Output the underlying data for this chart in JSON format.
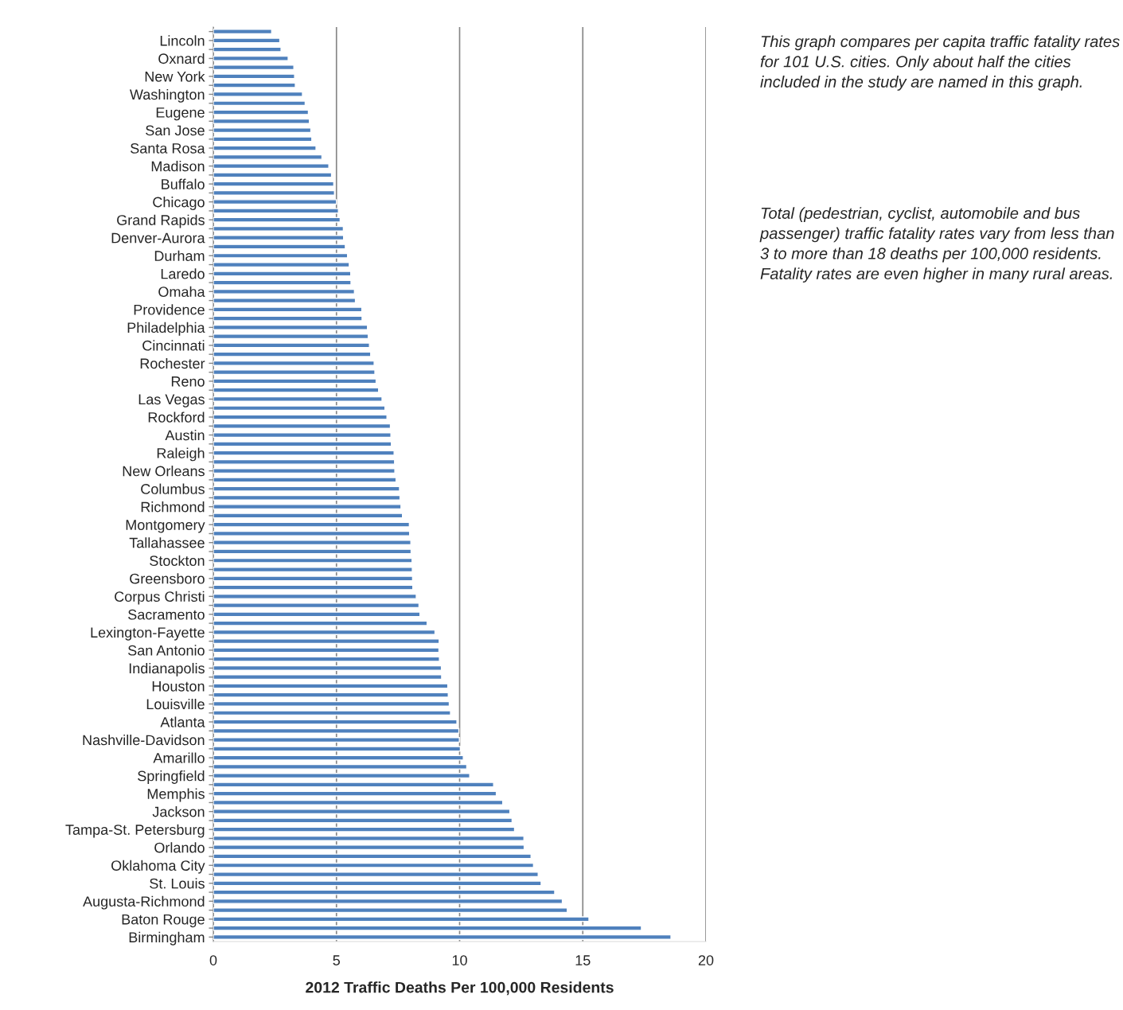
{
  "chart_data": {
    "type": "bar",
    "orientation": "horizontal",
    "xlabel": "2012 Traffic Deaths Per 100,000 Residents",
    "categories": [
      null,
      "Lincoln",
      null,
      "Oxnard",
      null,
      "New York",
      null,
      "Washington",
      null,
      "Eugene",
      null,
      "San Jose",
      null,
      "Santa Rosa",
      null,
      "Madison",
      null,
      "Buffalo",
      null,
      "Chicago",
      null,
      "Grand Rapids",
      null,
      "Denver-Aurora",
      null,
      "Durham",
      null,
      "Laredo",
      null,
      "Omaha",
      null,
      "Providence",
      null,
      "Philadelphia",
      null,
      "Cincinnati",
      null,
      "Rochester",
      null,
      "Reno",
      null,
      "Las Vegas",
      null,
      "Rockford",
      null,
      "Austin",
      null,
      "Raleigh",
      null,
      "New Orleans",
      null,
      "Columbus",
      null,
      "Richmond",
      null,
      "Montgomery",
      null,
      "Tallahassee",
      null,
      "Stockton",
      null,
      "Greensboro",
      null,
      "Corpus Christi",
      null,
      "Sacramento",
      null,
      "Lexington-Fayette",
      null,
      "San Antonio",
      null,
      "Indianapolis",
      null,
      "Houston",
      null,
      "Louisville",
      null,
      "Atlanta",
      null,
      "Nashville-Davidson",
      null,
      "Amarillo",
      null,
      "Springfield",
      null,
      "Memphis",
      null,
      "Jackson",
      null,
      "Tampa-St. Petersburg",
      null,
      "Orlando",
      null,
      "Oklahoma City",
      null,
      "St. Louis",
      null,
      "Augusta-Richmond",
      null,
      "Baton Rouge",
      null,
      "Birmingham"
    ],
    "values": [
      2.37,
      2.7,
      2.75,
      3.04,
      3.27,
      3.3,
      3.33,
      3.62,
      3.73,
      3.86,
      3.9,
      3.96,
      4.0,
      4.17,
      4.41,
      4.69,
      4.8,
      4.89,
      4.92,
      5.0,
      5.08,
      5.15,
      5.28,
      5.29,
      5.36,
      5.45,
      5.52,
      5.58,
      5.59,
      5.73,
      5.77,
      6.03,
      6.04,
      6.26,
      6.29,
      6.34,
      6.39,
      6.53,
      6.56,
      6.61,
      6.71,
      6.85,
      6.97,
      7.05,
      7.19,
      7.21,
      7.23,
      7.34,
      7.36,
      7.37,
      7.42,
      7.56,
      7.58,
      7.62,
      7.68,
      7.96,
      7.97,
      8.02,
      8.03,
      8.07,
      8.08,
      8.09,
      8.1,
      8.24,
      8.35,
      8.39,
      8.68,
      9.0,
      9.17,
      9.16,
      9.18,
      9.26,
      9.27,
      9.52,
      9.54,
      9.58,
      9.63,
      9.89,
      9.97,
      9.99,
      10.03,
      10.15,
      10.29,
      10.41,
      11.38,
      11.49,
      11.75,
      12.04,
      12.13,
      12.23,
      12.61,
      12.62,
      12.9,
      13.0,
      13.19,
      13.31,
      13.86,
      14.17,
      14.37,
      15.25,
      17.38,
      18.58
    ],
    "color": "#4f81bd",
    "xlim": [
      0,
      20
    ],
    "xticks": [
      0,
      5,
      10,
      15,
      20
    ],
    "grid": "x",
    "legend": false,
    "annotations": [
      "This graph compares per capita traffic fatality rates for 101 U.S. cities. Only about half the cities included in the study are named in this graph.",
      "Total (pedestrian, cyclist, automobile and bus passenger) traffic fatality rates vary from less than 3 to more than 18 deaths per 100,000 residents.  Fatality rates are even higher in many rural areas."
    ]
  }
}
